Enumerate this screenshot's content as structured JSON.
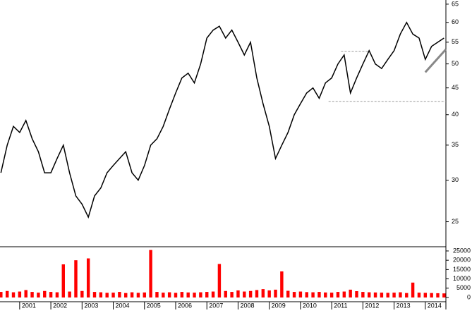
{
  "chart_data": [
    {
      "type": "line",
      "log_scale": true,
      "color": "#000000",
      "x": [
        2000.4,
        2000.6,
        2000.8,
        2001.0,
        2001.2,
        2001.4,
        2001.6,
        2001.8,
        2002.0,
        2002.2,
        2002.4,
        2002.6,
        2002.8,
        2003.0,
        2003.2,
        2003.4,
        2003.6,
        2003.8,
        2004.0,
        2004.2,
        2004.4,
        2004.6,
        2004.8,
        2005.0,
        2005.2,
        2005.4,
        2005.6,
        2005.8,
        2006.0,
        2006.2,
        2006.4,
        2006.6,
        2006.8,
        2007.0,
        2007.2,
        2007.4,
        2007.6,
        2007.8,
        2008.0,
        2008.2,
        2008.4,
        2008.6,
        2008.8,
        2009.0,
        2009.2,
        2009.4,
        2009.6,
        2009.8,
        2010.0,
        2010.2,
        2010.4,
        2010.6,
        2010.8,
        2011.0,
        2011.2,
        2011.4,
        2011.6,
        2011.8,
        2012.0,
        2012.2,
        2012.4,
        2012.6,
        2012.8,
        2013.0,
        2013.2,
        2013.4,
        2013.6,
        2013.8,
        2014.0,
        2014.2,
        2014.4,
        2014.6
      ],
      "values": [
        31,
        35,
        38,
        37,
        39,
        36,
        34,
        31,
        31,
        33,
        35,
        31,
        28,
        27,
        25.5,
        28,
        29,
        31,
        32,
        33,
        34,
        31,
        30,
        32,
        35,
        36,
        38,
        41,
        44,
        47,
        48,
        46,
        50,
        56,
        58,
        59,
        56,
        58,
        55,
        52,
        55,
        47,
        42,
        38,
        33,
        35,
        37,
        40,
        42,
        44,
        45,
        43,
        46,
        47,
        50,
        52,
        44,
        47,
        50,
        53,
        50,
        49,
        51,
        53,
        57,
        60,
        57,
        56,
        51,
        54,
        55,
        56
      ],
      "xlim": [
        2000.37,
        2014.66
      ],
      "xticks": [
        2001,
        2002,
        2003,
        2004,
        2005,
        2006,
        2007,
        2008,
        2009,
        2010,
        2011,
        2012,
        2013,
        2014
      ],
      "ylim": [
        22.4,
        66.2
      ],
      "yticks": [
        25,
        30,
        35,
        40,
        45,
        50,
        55,
        60,
        65
      ],
      "reference_lines": [
        {
          "y": 52.8,
          "x": [
            2011.3,
            2012.2
          ]
        },
        {
          "y": 42.4,
          "x": [
            2010.9,
            2014.66
          ]
        }
      ],
      "trend_line": {
        "x": [
          2014.0,
          2014.66
        ],
        "y": [
          48.2,
          53.3
        ]
      }
    },
    {
      "type": "bar",
      "color": "#ff0000",
      "x": [
        2000.4,
        2000.6,
        2000.8,
        2001.0,
        2001.2,
        2001.4,
        2001.6,
        2001.8,
        2002.0,
        2002.2,
        2002.4,
        2002.6,
        2002.8,
        2003.0,
        2003.2,
        2003.4,
        2003.6,
        2003.8,
        2004.0,
        2004.2,
        2004.4,
        2004.6,
        2004.8,
        2005.0,
        2005.2,
        2005.4,
        2005.6,
        2005.8,
        2006.0,
        2006.2,
        2006.4,
        2006.6,
        2006.8,
        2007.0,
        2007.2,
        2007.4,
        2007.6,
        2007.8,
        2008.0,
        2008.2,
        2008.4,
        2008.6,
        2008.8,
        2009.0,
        2009.2,
        2009.4,
        2009.6,
        2009.8,
        2010.0,
        2010.2,
        2010.4,
        2010.6,
        2010.8,
        2011.0,
        2011.2,
        2011.4,
        2011.6,
        2011.8,
        2012.0,
        2012.2,
        2012.4,
        2012.6,
        2012.8,
        2013.0,
        2013.2,
        2013.4,
        2013.6,
        2013.8,
        2014.0,
        2014.2,
        2014.4,
        2014.6
      ],
      "values": [
        3000,
        3500,
        2800,
        3200,
        4000,
        3000,
        2600,
        3500,
        3000,
        2800,
        17800,
        3200,
        20000,
        3500,
        21000,
        3000,
        2800,
        2500,
        2600,
        3000,
        2400,
        2800,
        2500,
        2700,
        25500,
        3000,
        2600,
        2800,
        2500,
        3000,
        2700,
        2600,
        2800,
        3000,
        3200,
        18000,
        3500,
        3000,
        3800,
        3200,
        3500,
        4000,
        4500,
        3800,
        4200,
        14000,
        3600,
        3000,
        3200,
        2900,
        2800,
        3000,
        2700,
        2600,
        3000,
        3200,
        4200,
        3400,
        3000,
        2800,
        2700,
        2600,
        2500,
        2600,
        2800,
        2400,
        8000,
        2600,
        2500,
        2400,
        2300,
        2200
      ],
      "xlim": [
        2000.37,
        2014.66
      ],
      "ylim": [
        0,
        26500
      ],
      "yticks": [
        0,
        5000,
        10000,
        15000,
        20000,
        25000
      ]
    }
  ]
}
